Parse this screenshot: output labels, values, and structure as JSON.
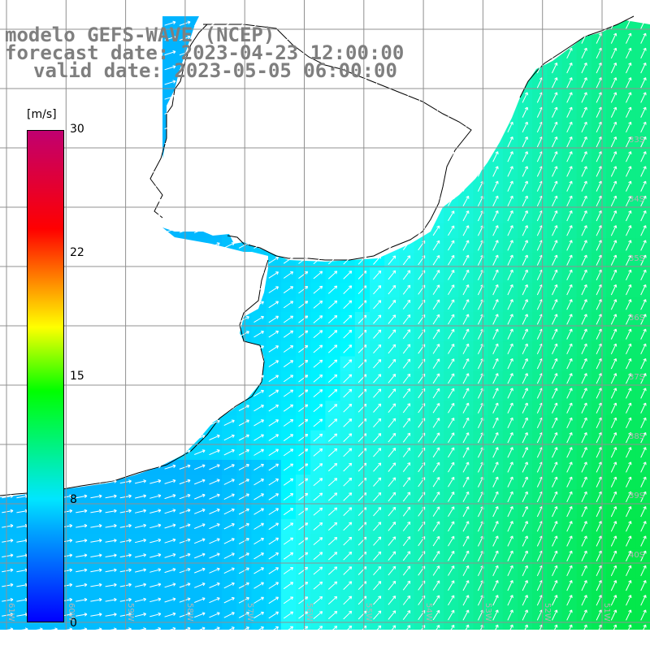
{
  "title": {
    "line1": "modelo GEFS-WAVE (NCEP)",
    "line2": "forecast date: 2023-04-23 12:00:00",
    "line3": "valid date: 2023-05-05 06:00:00"
  },
  "colorbar": {
    "unit": "[m/s]",
    "tick_labels": [
      "30",
      "22",
      "15",
      "8",
      "0"
    ],
    "colors": [
      "#0000ff",
      "#00a0ff",
      "#00e6ff",
      "#00ff00",
      "#ffff00",
      "#ff8000",
      "#ff0000",
      "#c00070"
    ]
  },
  "map": {
    "lon_labels": [
      "61W",
      "60W",
      "59W",
      "58W",
      "57W",
      "56W",
      "55W",
      "54W",
      "53W",
      "52W",
      "51W"
    ],
    "lat_labels": [
      "33S",
      "34S",
      "35S",
      "36S",
      "37S",
      "38S",
      "39S",
      "40S"
    ],
    "land_color": "#ffffff",
    "coast_color": "#000000",
    "grid_color": "#909090",
    "arrow_color": "#ffffff"
  }
}
